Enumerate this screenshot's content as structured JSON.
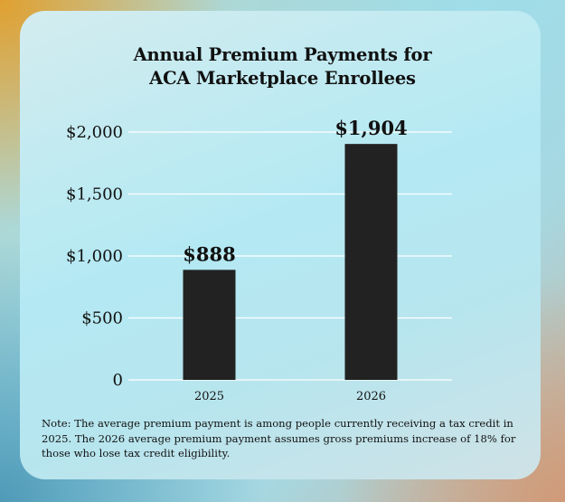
{
  "chart_data": {
    "type": "bar",
    "title_lines": [
      "Annual Premium Payments for",
      "ACA Marketplace Enrollees"
    ],
    "categories": [
      "2025",
      "2026"
    ],
    "values": [
      888,
      1904
    ],
    "data_labels": [
      "$888",
      "$1,904"
    ],
    "y_ticks": [
      0,
      500,
      1000,
      1500,
      2000
    ],
    "y_tick_labels": [
      "0",
      "$500",
      "$1,000",
      "$1,500",
      "$2,000"
    ],
    "ylim": [
      0,
      2000
    ],
    "grid": true,
    "bar_color": "#222222",
    "xlabel": "",
    "ylabel": ""
  },
  "note": "Note: The average premium payment is among people currently receiving a tax credit in 2025. The 2026 average premium payment assumes gross premiums increase of 18% for those who lose tax credit eligibility."
}
